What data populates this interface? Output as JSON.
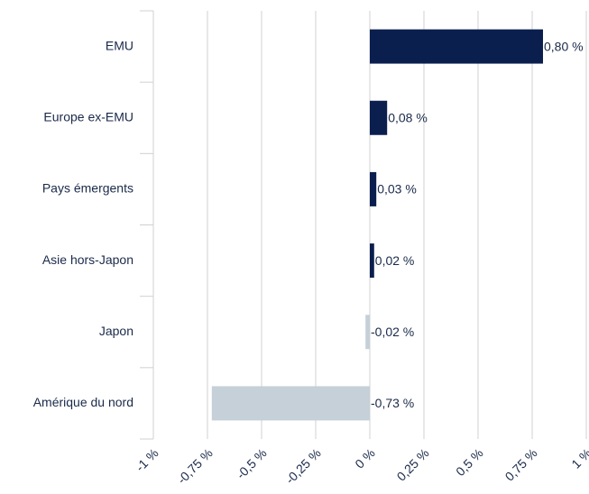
{
  "chart_data": {
    "type": "hbar",
    "categories": [
      "EMU",
      "Europe ex-EMU",
      "Pays émergents",
      "Asie hors-Japon",
      "Japon",
      "Amérique du nord"
    ],
    "values": [
      0.8,
      0.08,
      0.03,
      0.02,
      -0.02,
      -0.73
    ],
    "value_labels": [
      "0,80 %",
      "0,08 %",
      "0,03 %",
      "0,02 %",
      "-0,02 %",
      "-0,73 %"
    ],
    "colors": [
      "#0a1f4d",
      "#0a1f4d",
      "#0a1f4d",
      "#0a1f4d",
      "#c5d0d8",
      "#c5d0d8"
    ],
    "xlim": [
      -1,
      1
    ],
    "xticks": [
      {
        "value": -1,
        "label": "-1 %"
      },
      {
        "value": -0.75,
        "label": "-0,75 %"
      },
      {
        "value": -0.5,
        "label": "-0,5 %"
      },
      {
        "value": -0.25,
        "label": "-0,25 %"
      },
      {
        "value": 0,
        "label": "0 %"
      },
      {
        "value": 0.25,
        "label": "0,25 %"
      },
      {
        "value": 0.5,
        "label": "0,5 %"
      },
      {
        "value": 0.75,
        "label": "0,75 %"
      },
      {
        "value": 1,
        "label": "1 %"
      }
    ],
    "grid": true
  }
}
